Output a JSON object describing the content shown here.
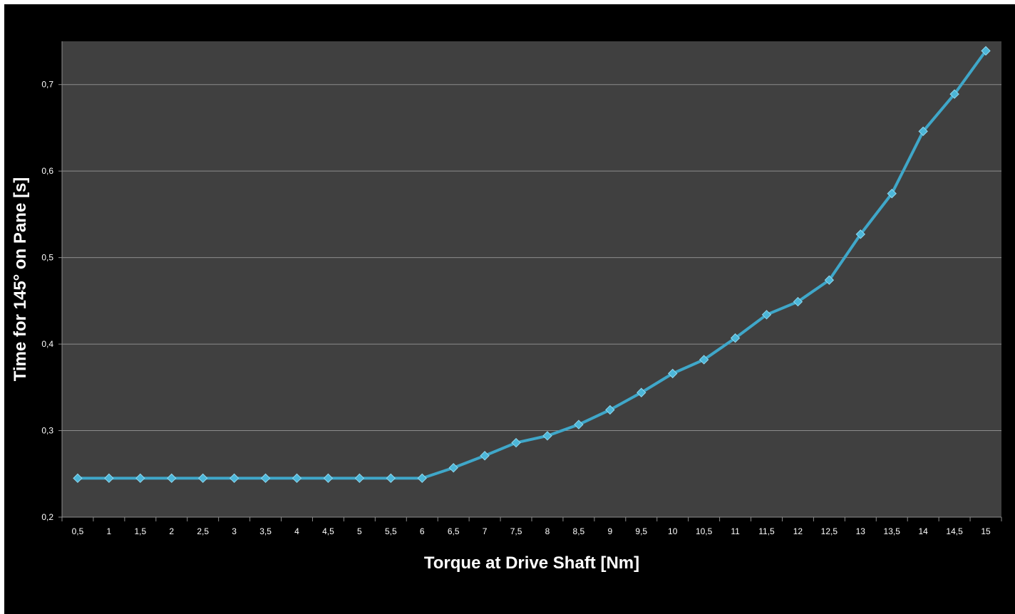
{
  "chart_data": {
    "type": "line",
    "title": "",
    "xlabel": "Torque at Drive Shaft [Nm]",
    "ylabel": "Time for 145° on Pane [s]",
    "categories": [
      "0,5",
      "1",
      "1,5",
      "2",
      "2,5",
      "3",
      "3,5",
      "4",
      "4,5",
      "5",
      "5,5",
      "6",
      "6,5",
      "7",
      "7,5",
      "8",
      "8,5",
      "9",
      "9,5",
      "10",
      "10,5",
      "11",
      "11,5",
      "12",
      "12,5",
      "13",
      "13,5",
      "14",
      "14,5",
      "15"
    ],
    "series": [
      {
        "values": [
          0.245,
          0.245,
          0.245,
          0.245,
          0.245,
          0.245,
          0.245,
          0.245,
          0.245,
          0.245,
          0.245,
          0.245,
          0.257,
          0.271,
          0.286,
          0.294,
          0.307,
          0.324,
          0.344,
          0.366,
          0.382,
          0.407,
          0.434,
          0.449,
          0.474,
          0.527,
          0.574,
          0.646,
          0.689,
          0.739
        ]
      }
    ],
    "ylim": [
      0.2,
      0.75
    ],
    "yticks": [
      "0,2",
      "0,3",
      "0,4",
      "0,5",
      "0,6",
      "0,7"
    ],
    "ytick_values": [
      0.2,
      0.3,
      0.4,
      0.5,
      0.6,
      0.7
    ],
    "grid": true,
    "legend": "none",
    "colors": {
      "background": "#000000",
      "plot_area": "#404040",
      "gridline": "#8c8c8c",
      "line": "#3fa7c9",
      "marker": "#4cb6d8",
      "text": "#ffffff"
    }
  }
}
